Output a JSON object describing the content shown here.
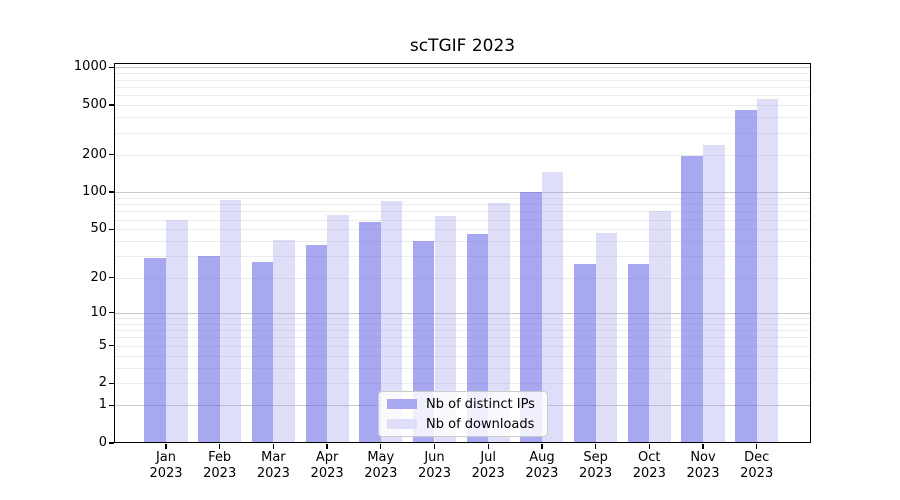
{
  "title": "scTGIF 2023",
  "legend": {
    "items": [
      {
        "label": "Nb of distinct IPs",
        "color": "#a8a8f0"
      },
      {
        "label": "Nb of downloads",
        "color": "#dedef9"
      }
    ]
  },
  "chart_data": {
    "type": "bar",
    "title": "scTGIF 2023",
    "categories": [
      "Jan",
      "Feb",
      "Mar",
      "Apr",
      "May",
      "Jun",
      "Jul",
      "Aug",
      "Sep",
      "Oct",
      "Nov",
      "Dec"
    ],
    "category_year": "2023",
    "series": [
      {
        "name": "Nb of distinct IPs",
        "color": "#a8a8f0",
        "fill": "rgba(110,110,230,0.60)",
        "values": [
          29,
          30,
          27,
          37,
          57,
          40,
          46,
          100,
          26,
          26,
          195,
          460
        ]
      },
      {
        "name": "Nb of downloads",
        "color": "#dedef9",
        "fill": "rgba(160,160,238,0.35)",
        "values": [
          60,
          87,
          41,
          65,
          84,
          64,
          81,
          145,
          47,
          70,
          240,
          555
        ]
      }
    ],
    "xlabel": "",
    "ylabel": "",
    "yscale": "log1p",
    "yticks": [
      0,
      1,
      2,
      5,
      10,
      20,
      50,
      100,
      200,
      500,
      1000
    ],
    "ylim": [
      0,
      1083
    ],
    "grid": true,
    "grid_major_color": "#c9c9c9",
    "grid_minor_color": "#ececec",
    "legend_position": "lower center"
  }
}
